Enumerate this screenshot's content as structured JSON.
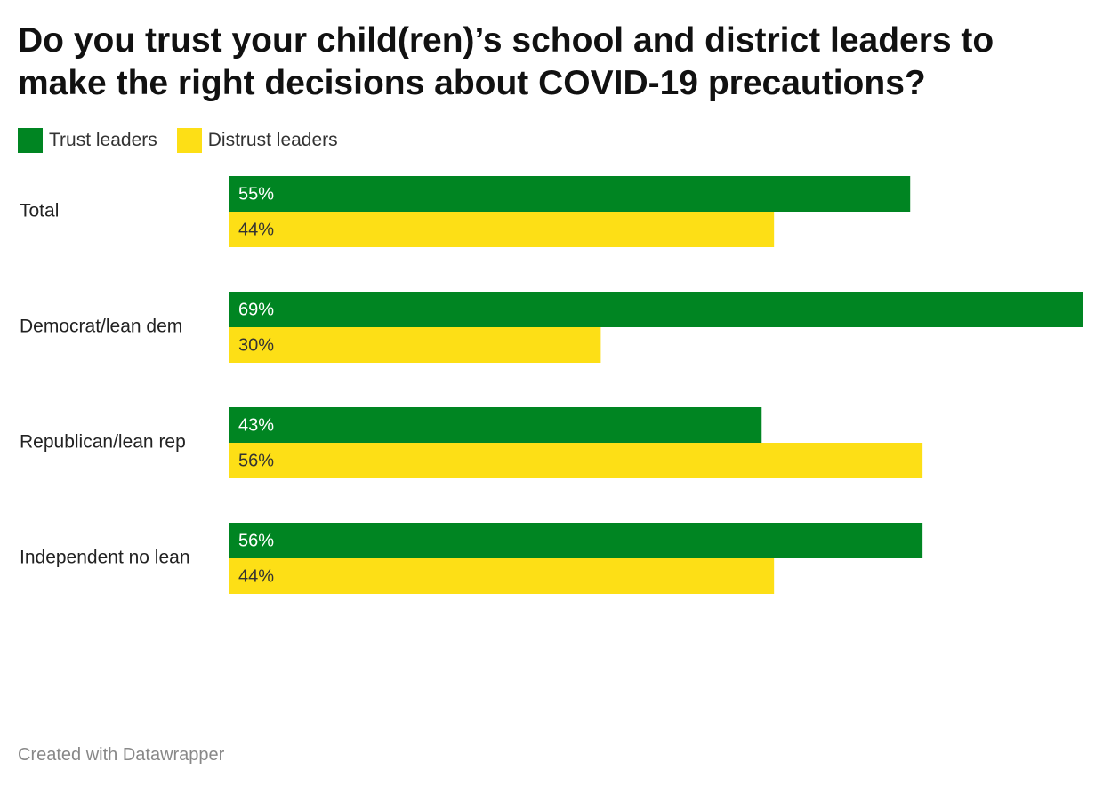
{
  "title": "Do you trust your child(ren)’s school and district leaders to make the right decisions about COVID-19 precautions?",
  "footer": "Created with Datawrapper",
  "legend": [
    {
      "label": "Trust leaders",
      "color": "#008522"
    },
    {
      "label": "Distrust leaders",
      "color": "#fddf16"
    }
  ],
  "chart_data": {
    "type": "bar",
    "orientation": "horizontal",
    "categories": [
      "Total",
      "Democrat/lean dem",
      "Republican/lean rep",
      "Independent no lean"
    ],
    "series": [
      {
        "name": "Trust leaders",
        "color": "#008522",
        "label_color": "#ffffff",
        "values": [
          55,
          69,
          43,
          56
        ],
        "labels": [
          "55%",
          "69%",
          "43%",
          "56%"
        ]
      },
      {
        "name": "Distrust leaders",
        "color": "#fddf16",
        "label_color": "#333333",
        "values": [
          44,
          30,
          56,
          44
        ],
        "labels": [
          "44%",
          "30%",
          "56%",
          "44%"
        ]
      }
    ],
    "xlim": [
      0,
      69
    ],
    "grid": false,
    "legend_position": "top-left",
    "title": "Do you trust your child(ren)’s school and district leaders to make the right decisions about COVID-19 precautions?",
    "xlabel": "",
    "ylabel": ""
  }
}
